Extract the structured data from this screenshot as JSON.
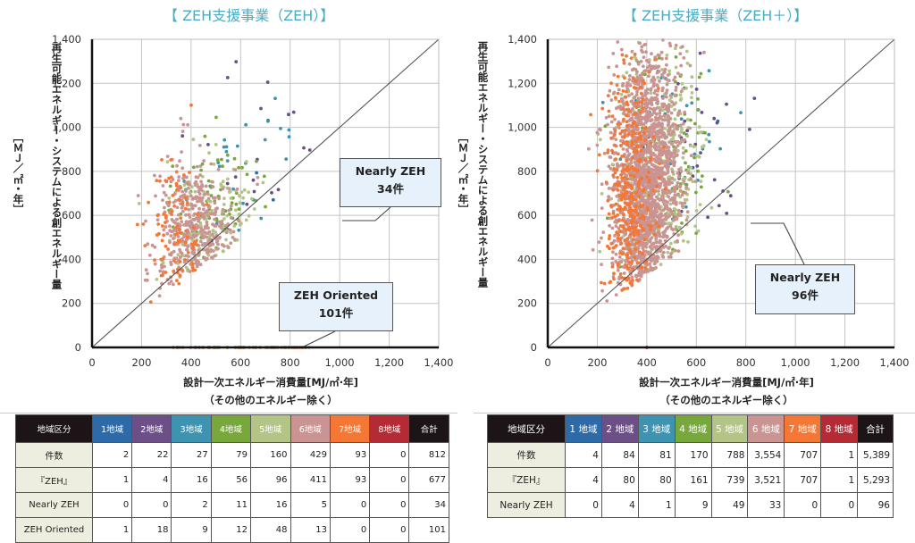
{
  "colors": {
    "title": "#4bacc6",
    "region1": "#2e6aa8",
    "region2": "#6b4f86",
    "region3": "#3e93b1",
    "region4": "#78a83c",
    "region5": "#b2c486",
    "region6": "#c99491",
    "region7": "#f47735",
    "region8": "#b42a35",
    "header_dark": "#1c1416",
    "total": "#1c1416"
  },
  "chart_data": [
    {
      "type": "scatter",
      "title": "【 ZEH支援事業（ZEH）】",
      "xlabel": "設計一次エネルギー消費量[MJ/㎡·年]",
      "xlabel_sub": "（その他のエネルギー除く）",
      "ylabel": "再生可能エネルギー・システムによる創エネルギー量",
      "ylabel_unit": "［ＭＪ／㎡・年］",
      "xlim": [
        0,
        1400
      ],
      "ylim": [
        0,
        1400
      ],
      "xticks": [
        "0",
        "200",
        "400",
        "600",
        "800",
        "1,000",
        "1,200",
        "1,400"
      ],
      "yticks": [
        "0",
        "200",
        "400",
        "600",
        "800",
        "1,000",
        "1,200",
        "1,400"
      ],
      "grid": true,
      "reference_line": "y = x",
      "callouts": [
        {
          "label": "Nearly ZEH",
          "count": "34件"
        },
        {
          "label": "ZEH Oriented",
          "count": "101件"
        }
      ],
      "series": [
        {
          "name": "1地域",
          "count": 2,
          "center": [
            700,
            700
          ],
          "spread": [
            150,
            300
          ]
        },
        {
          "name": "2地域",
          "count": 22,
          "center": [
            680,
            850
          ],
          "spread": [
            150,
            260
          ]
        },
        {
          "name": "3地域",
          "count": 27,
          "center": [
            620,
            760
          ],
          "spread": [
            130,
            220
          ]
        },
        {
          "name": "4地域",
          "count": 79,
          "center": [
            520,
            600
          ],
          "spread": [
            100,
            180
          ]
        },
        {
          "name": "5地域",
          "count": 160,
          "center": [
            470,
            530
          ],
          "spread": [
            90,
            150
          ]
        },
        {
          "name": "6地域",
          "count": 429,
          "center": [
            420,
            500
          ],
          "spread": [
            80,
            170
          ]
        },
        {
          "name": "7地域",
          "count": 93,
          "center": [
            350,
            460
          ],
          "spread": [
            60,
            200
          ]
        },
        {
          "name": "8地域",
          "count": 0,
          "center": [
            0,
            0
          ],
          "spread": [
            0,
            0
          ]
        }
      ]
    },
    {
      "type": "scatter",
      "title": "【 ZEH支援事業（ZEH＋）】",
      "xlabel": "設計一次エネルギー消費量[MJ/㎡·年]",
      "xlabel_sub": "（その他のエネルギー除く）",
      "ylabel": "再生可能エネルギー・システムによる創エネルギー量",
      "ylabel_unit": "［ＭＪ／㎡・年］",
      "xlim": [
        0,
        1400
      ],
      "ylim": [
        0,
        1400
      ],
      "xticks": [
        "0",
        "200",
        "400",
        "600",
        "800",
        "1,000",
        "1,200",
        "1,400"
      ],
      "yticks": [
        "0",
        "200",
        "400",
        "600",
        "800",
        "1,000",
        "1,200",
        "1,400"
      ],
      "grid": true,
      "reference_line": "y = x",
      "callouts": [
        {
          "label": "Nearly ZEH",
          "count": "96件"
        }
      ],
      "series": [
        {
          "name": "1地域",
          "count": 4,
          "center": [
            700,
            1150
          ],
          "spread": [
            150,
            150
          ]
        },
        {
          "name": "2地域",
          "count": 84,
          "center": [
            560,
            950
          ],
          "spread": [
            130,
            260
          ]
        },
        {
          "name": "3地域",
          "count": 81,
          "center": [
            480,
            1000
          ],
          "spread": [
            110,
            250
          ]
        },
        {
          "name": "4地域",
          "count": 170,
          "center": [
            470,
            850
          ],
          "spread": [
            110,
            300
          ]
        },
        {
          "name": "5地域",
          "count": 788,
          "center": [
            450,
            750
          ],
          "spread": [
            90,
            300
          ]
        },
        {
          "name": "6地域",
          "count": 3554,
          "center": [
            400,
            750
          ],
          "spread": [
            70,
            320
          ]
        },
        {
          "name": "7地域",
          "count": 707,
          "center": [
            330,
            700
          ],
          "spread": [
            50,
            330
          ]
        },
        {
          "name": "8地域",
          "count": 1,
          "center": [
            400,
            0
          ],
          "spread": [
            0,
            0
          ]
        }
      ]
    }
  ],
  "tables": [
    {
      "header": [
        "地域区分",
        "1地域",
        "2地域",
        "3地域",
        "4地域",
        "5地域",
        "6地域",
        "7地域",
        "8地域",
        "合計"
      ],
      "rows": [
        {
          "label": "件数",
          "values": [
            "2",
            "22",
            "27",
            "79",
            "160",
            "429",
            "93",
            "0",
            "812"
          ]
        },
        {
          "label": "『ZEH』",
          "values": [
            "1",
            "4",
            "16",
            "56",
            "96",
            "411",
            "93",
            "0",
            "677"
          ]
        },
        {
          "label": "Nearly ZEH",
          "values": [
            "0",
            "0",
            "2",
            "11",
            "16",
            "5",
            "0",
            "0",
            "34"
          ]
        },
        {
          "label": "ZEH Oriented",
          "values": [
            "1",
            "18",
            "9",
            "12",
            "48",
            "13",
            "0",
            "0",
            "101"
          ]
        }
      ]
    },
    {
      "header": [
        "地域区分",
        "1 地域",
        "2 地域",
        "3 地域",
        "4 地域",
        "5 地域",
        "6 地域",
        "7 地域",
        "8 地域",
        "合計"
      ],
      "rows": [
        {
          "label": "件数",
          "values": [
            "4",
            "84",
            "81",
            "170",
            "788",
            "3,554",
            "707",
            "1",
            "5,389"
          ]
        },
        {
          "label": "『ZEH』",
          "values": [
            "4",
            "80",
            "80",
            "161",
            "739",
            "3,521",
            "707",
            "1",
            "5,293"
          ]
        },
        {
          "label": "Nearly ZEH",
          "values": [
            "0",
            "4",
            "1",
            "9",
            "49",
            "33",
            "0",
            "0",
            "96"
          ]
        }
      ]
    }
  ]
}
